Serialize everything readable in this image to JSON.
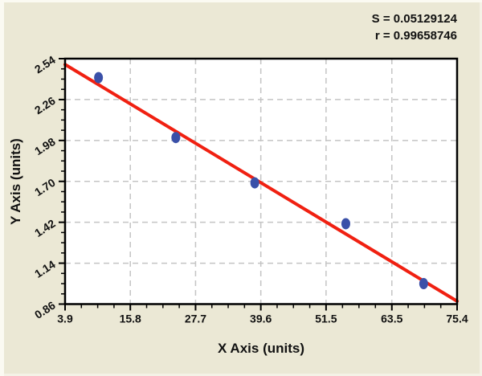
{
  "stats": {
    "s_label": "S = 0.05129124",
    "r_label": "r = 0.99658746"
  },
  "chart_data": {
    "type": "scatter",
    "title": "",
    "xlabel": "X Axis (units)",
    "ylabel": "Y Axis (units)",
    "xlim": [
      3.9,
      75.4
    ],
    "ylim": [
      0.86,
      2.54
    ],
    "x_ticks": [
      3.9,
      15.8,
      27.7,
      39.6,
      51.5,
      63.5,
      75.4
    ],
    "x_tick_labels": [
      "3.9",
      "15.8",
      "27.7",
      "39.6",
      "51.5",
      "63.5",
      "75.4"
    ],
    "y_ticks": [
      0.86,
      1.14,
      1.42,
      1.7,
      1.98,
      2.26,
      2.54
    ],
    "y_tick_labels": [
      "0.86",
      "1.14",
      "1.42",
      "1.70",
      "1.98",
      "2.26",
      "2.54"
    ],
    "minor_ticks_per_interval": 3,
    "grid": "dashed",
    "legend": null,
    "points": [
      {
        "x": 10.0,
        "y": 2.41
      },
      {
        "x": 24.1,
        "y": 2.0
      },
      {
        "x": 38.5,
        "y": 1.69
      },
      {
        "x": 55.1,
        "y": 1.41
      },
      {
        "x": 69.3,
        "y": 1.0
      }
    ],
    "regression_line": {
      "x1": 3.9,
      "y1": 2.5,
      "x2": 75.4,
      "y2": 0.88
    },
    "fit_statistics": {
      "S": "0.05129124",
      "r": "0.99658746"
    },
    "colors": {
      "background": "#EBE8D5",
      "plot_background": "#FFFFFF",
      "point": "#3A50A8",
      "regression_line": "#F02011",
      "grid": "#C4C4C4",
      "axis": "#000000",
      "text": "#111111"
    }
  }
}
